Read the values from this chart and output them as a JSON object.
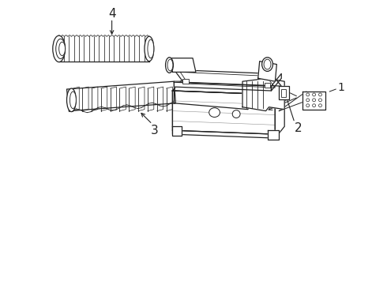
{
  "background_color": "#ffffff",
  "line_color": "#222222",
  "label_color": "#000000",
  "fig_width": 4.9,
  "fig_height": 3.6,
  "dpi": 100,
  "label_fontsize": 10
}
